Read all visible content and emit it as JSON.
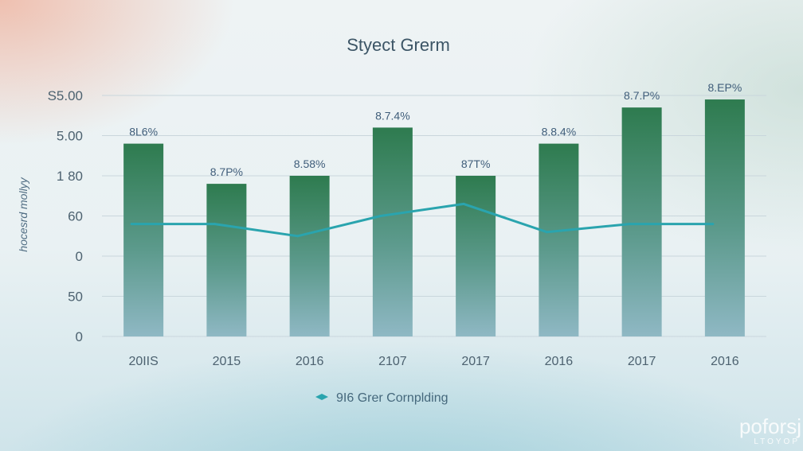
{
  "chart_data": {
    "type": "bar",
    "title": "Styect Grerm",
    "ylabel": "hocesrd mollyy",
    "xlabel": "",
    "y_tick_labels": [
      "S5.00",
      "5.00",
      "1 80",
      "60",
      "0",
      "50",
      "0"
    ],
    "categories": [
      "20IIS",
      "2015",
      "2016",
      "2107",
      "2017",
      "2016",
      "2017",
      "2016"
    ],
    "series": [
      {
        "kind": "bar",
        "values": [
          4.8,
          3.8,
          4.0,
          5.2,
          4.0,
          4.8,
          5.7,
          5.9
        ],
        "data_labels": [
          "8L6%",
          "8.7P%",
          "8.58%",
          "8.7.4%",
          "87T%",
          "8.8.4%",
          "8.7.P%",
          "8.EP%"
        ]
      },
      {
        "kind": "line",
        "name": "9I6 Grer Cornplding",
        "values": [
          2.8,
          2.8,
          2.5,
          3.0,
          3.3,
          2.6,
          2.8,
          2.8
        ]
      }
    ],
    "ylim": [
      0,
      6
    ],
    "grid": true,
    "legend_position": "bottom-center",
    "colors": {
      "bar_top": "#2e7b4f",
      "bar_bottom": "#8fb8c4",
      "line": "#2aa4ae",
      "grid": "#c9d6dc"
    }
  },
  "watermark": {
    "text": "poforsj",
    "subtext": "LTOYOP"
  }
}
